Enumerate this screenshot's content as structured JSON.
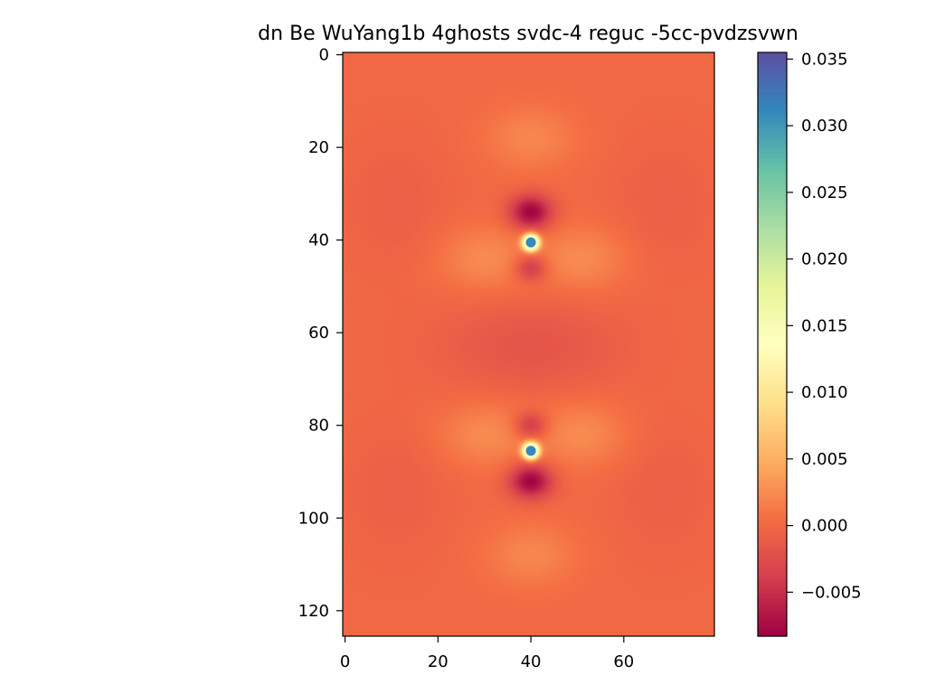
{
  "chart_data": {
    "type": "heatmap",
    "title": "dn Be WuYang1b 4ghosts svdc-4 reguc -5cc-pvdzsvwn",
    "xlabel": "",
    "ylabel": "",
    "xlim": [
      -0.5,
      79.5
    ],
    "ylim": [
      125.5,
      -0.5
    ],
    "grid_shape": [
      126,
      80
    ],
    "xticks": [
      0,
      20,
      40,
      60
    ],
    "yticks": [
      0,
      20,
      40,
      60,
      80,
      100,
      120
    ],
    "colormap": "Spectral",
    "colorbar": {
      "min": -0.0083,
      "max": 0.0355,
      "ticks": [
        -0.005,
        0.0,
        0.005,
        0.01,
        0.015,
        0.02,
        0.025,
        0.03,
        0.035
      ],
      "tick_labels": [
        "−0.005",
        "0.000",
        "0.005",
        "0.010",
        "0.015",
        "0.020",
        "0.025",
        "0.030",
        "0.035"
      ]
    },
    "background_value": 0.0,
    "features": [
      {
        "kind": "nucleus_peak",
        "x": 40,
        "y": 40.5,
        "value": 0.0355
      },
      {
        "kind": "nucleus_peak",
        "x": 40,
        "y": 85.5,
        "value": 0.0355
      },
      {
        "kind": "deep_minimum",
        "x": 40,
        "y": 34,
        "value": -0.0083
      },
      {
        "kind": "deep_minimum",
        "x": 40,
        "y": 92,
        "value": -0.0083
      },
      {
        "kind": "minimum",
        "x": 40,
        "y": 46,
        "value": -0.005
      },
      {
        "kind": "minimum",
        "x": 40,
        "y": 80,
        "value": -0.005
      },
      {
        "kind": "broad_minimum",
        "x": 40,
        "y": 63,
        "value": -0.0018
      },
      {
        "kind": "maximum",
        "x": 40,
        "y": 18,
        "value": 0.0022
      },
      {
        "kind": "maximum",
        "x": 40,
        "y": 108,
        "value": 0.0022
      },
      {
        "kind": "maximum",
        "x": 30,
        "y": 44,
        "value": 0.0025
      },
      {
        "kind": "maximum",
        "x": 51,
        "y": 44,
        "value": 0.0025
      },
      {
        "kind": "maximum",
        "x": 30,
        "y": 82,
        "value": 0.0025
      },
      {
        "kind": "maximum",
        "x": 51,
        "y": 82,
        "value": 0.0025
      },
      {
        "kind": "shallow_dip",
        "x": 11,
        "y": 32,
        "value": -0.0008
      },
      {
        "kind": "shallow_dip",
        "x": 69,
        "y": 32,
        "value": -0.0008
      },
      {
        "kind": "shallow_dip",
        "x": 11,
        "y": 94,
        "value": -0.0008
      },
      {
        "kind": "shallow_dip",
        "x": 69,
        "y": 94,
        "value": -0.0008
      }
    ]
  }
}
